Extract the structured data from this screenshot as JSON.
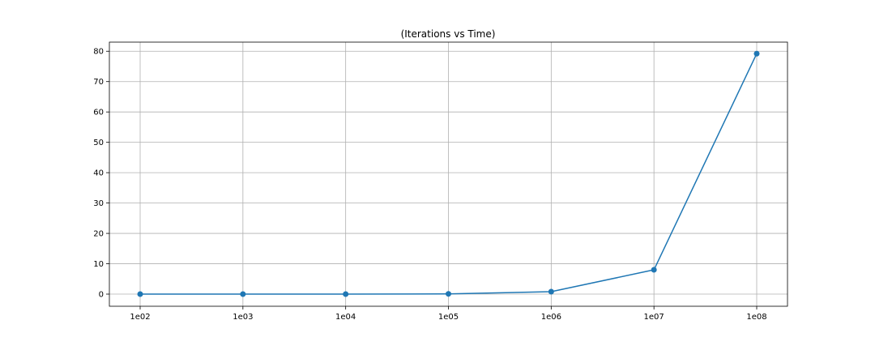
{
  "chart_data": {
    "type": "line",
    "title": "(Iterations vs Time)",
    "xlabel": "",
    "ylabel": "",
    "categories": [
      "1e02",
      "1e03",
      "1e04",
      "1e05",
      "1e06",
      "1e07",
      "1e08"
    ],
    "series": [
      {
        "values": [
          0.0,
          0.0,
          0.0,
          0.08,
          0.8,
          8.0,
          79.2
        ],
        "color": "#1f77b4",
        "marker": "circle"
      }
    ],
    "ylim": [
      -4,
      83
    ],
    "yticks": [
      0,
      10,
      20,
      30,
      40,
      50,
      60,
      70,
      80
    ],
    "grid": true,
    "legend": "none"
  }
}
